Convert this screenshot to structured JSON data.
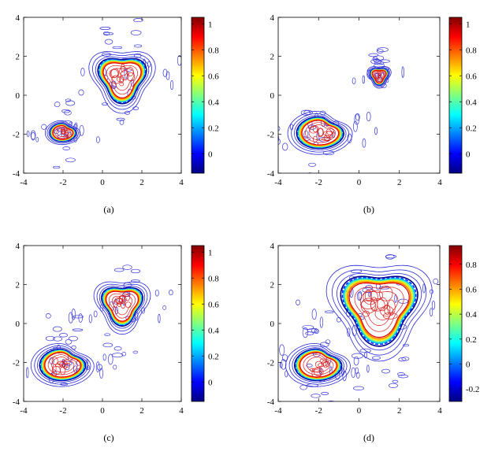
{
  "chart_data": [
    {
      "type": "contour",
      "caption": "(a)",
      "xlim": [
        -4,
        4
      ],
      "ylim": [
        -4,
        4
      ],
      "xticks": [
        "-4",
        "-2",
        "0",
        "2",
        "4"
      ],
      "yticks": [
        "-4",
        "-2",
        "0",
        "2",
        "4"
      ],
      "colorbar": {
        "min": -0.15,
        "max": 1.05,
        "ticks": [
          "0",
          "0.2",
          "0.4",
          "0.6",
          "0.8",
          "1"
        ],
        "tick_values": [
          0,
          0.2,
          0.4,
          0.6,
          0.8,
          1
        ]
      },
      "objects": [
        {
          "shape": "rounded-triangle",
          "center": [
            1.0,
            0.9
          ],
          "size": 1.0,
          "rotation": 0
        },
        {
          "shape": "kidney",
          "center": [
            -2.0,
            -1.9
          ],
          "size": 0.5,
          "rotation": 0.3
        }
      ]
    },
    {
      "type": "contour",
      "caption": "(b)",
      "xlim": [
        -4,
        4
      ],
      "ylim": [
        -4,
        4
      ],
      "xticks": [
        "-4",
        "-2",
        "0",
        "2",
        "4"
      ],
      "yticks": [
        "-4",
        "-2",
        "0",
        "2",
        "4"
      ],
      "colorbar": {
        "min": -0.15,
        "max": 1.05,
        "ticks": [
          "0",
          "0.2",
          "0.4",
          "0.6",
          "0.8",
          "1"
        ],
        "tick_values": [
          0,
          0.2,
          0.4,
          0.6,
          0.8,
          1
        ]
      },
      "objects": [
        {
          "shape": "rounded-triangle",
          "center": [
            1.0,
            1.0
          ],
          "size": 0.35,
          "rotation": 0
        },
        {
          "shape": "kidney",
          "center": [
            -1.9,
            -1.9
          ],
          "size": 0.9,
          "rotation": 0.3
        }
      ]
    },
    {
      "type": "contour",
      "caption": "(c)",
      "xlim": [
        -4,
        4
      ],
      "ylim": [
        -4,
        4
      ],
      "xticks": [
        "-4",
        "-2",
        "0",
        "2",
        "4"
      ],
      "yticks": [
        "-4",
        "-2",
        "0",
        "2",
        "4"
      ],
      "colorbar": {
        "min": -0.15,
        "max": 1.05,
        "ticks": [
          "0",
          "0.2",
          "0.4",
          "0.6",
          "0.8",
          "1"
        ],
        "tick_values": [
          0,
          0.2,
          0.4,
          0.6,
          0.8,
          1
        ]
      },
      "objects": [
        {
          "shape": "rounded-triangle",
          "center": [
            1.0,
            1.0
          ],
          "size": 0.85,
          "rotation": 0
        },
        {
          "shape": "kidney",
          "center": [
            -2.0,
            -2.1
          ],
          "size": 0.9,
          "rotation": 0.3
        }
      ]
    },
    {
      "type": "contour",
      "caption": "(d)",
      "xlim": [
        -4,
        4
      ],
      "ylim": [
        -4,
        4
      ],
      "xticks": [
        "-4",
        "-2",
        "0",
        "2",
        "4"
      ],
      "yticks": [
        "-4",
        "-2",
        "0",
        "2",
        "4"
      ],
      "colorbar": {
        "min": -0.3,
        "max": 0.95,
        "ticks": [
          "-0.2",
          "0",
          "0.2",
          "0.4",
          "0.6",
          "0.8"
        ],
        "tick_values": [
          -0.2,
          0,
          0.2,
          0.4,
          0.6,
          0.8
        ]
      },
      "objects": [
        {
          "shape": "rounded-triangle",
          "center": [
            1.0,
            0.9
          ],
          "size": 1.55,
          "rotation": 0
        },
        {
          "shape": "kidney",
          "center": [
            -2.0,
            -2.1
          ],
          "size": 0.9,
          "rotation": 0.3
        }
      ]
    }
  ]
}
